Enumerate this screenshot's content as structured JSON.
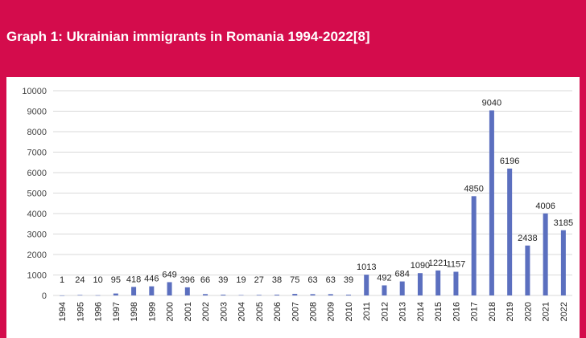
{
  "header": {
    "title": "Graph 1: Ukrainian immigrants in Romania 1994-2022[8]"
  },
  "colors": {
    "background": "#d40c4c",
    "panel": "#ffffff",
    "bar": "#5b6fbf",
    "grid": "#d9d9d9"
  },
  "chart_data": {
    "type": "bar",
    "title": "",
    "xlabel": "",
    "ylabel": "",
    "ylim": [
      0,
      10000
    ],
    "yticks": [
      0,
      1000,
      2000,
      3000,
      4000,
      5000,
      6000,
      7000,
      8000,
      9000,
      10000
    ],
    "grid": true,
    "categories": [
      "1994",
      "1995",
      "1996",
      "1997",
      "1998",
      "1999",
      "2000",
      "2001",
      "2002",
      "2003",
      "2004",
      "2005",
      "2006",
      "2007",
      "2008",
      "2009",
      "2010",
      "2011",
      "2012",
      "2013",
      "2014",
      "2015",
      "2016",
      "2017",
      "2018",
      "2019",
      "2020",
      "2021",
      "2022"
    ],
    "values": [
      1,
      24,
      10,
      95,
      418,
      446,
      649,
      396,
      66,
      39,
      19,
      27,
      38,
      75,
      63,
      63,
      39,
      1013,
      492,
      684,
      1090,
      1221,
      1157,
      4850,
      9040,
      6196,
      2438,
      4006,
      3185
    ]
  }
}
